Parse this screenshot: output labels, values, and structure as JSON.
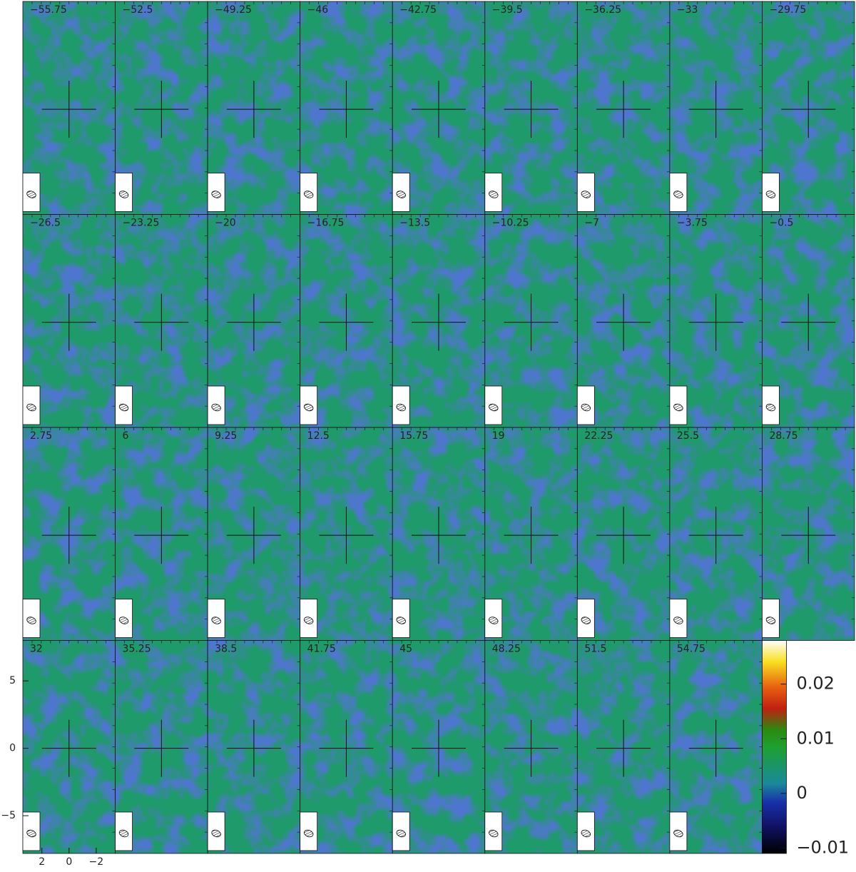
{
  "chart_data": {
    "type": "channel_map",
    "channels": [
      "−55.75",
      "−52.5",
      "−49.25",
      "−46",
      "−42.75",
      "−39.5",
      "−36.25",
      "−33",
      "−29.75",
      "−26.5",
      "−23.25",
      "−20",
      "−16.75",
      "−13.5",
      "−10.25",
      "−7",
      "−3.75",
      "−0.5",
      "2.75",
      "6",
      "9.25",
      "12.5",
      "15.75",
      "19",
      "22.25",
      "25.5",
      "28.75",
      "32",
      "35.25",
      "38.5",
      "41.75",
      "45",
      "48.25",
      "51.5",
      "54.75"
    ],
    "xlim": [
      3.4,
      -3.4
    ],
    "xticks": [
      2,
      0,
      {
        "value": -2,
        "label": "−2"
      }
    ],
    "ylim": [
      -7.8,
      8.0
    ],
    "yticks": [
      5,
      0,
      {
        "value": -5,
        "label": "−5"
      }
    ],
    "colorbar_lim": [
      -0.011,
      0.028
    ],
    "colorbar_ticks": [
      {
        "value": -0.01,
        "label": "−0.01"
      },
      0,
      0.01,
      0.02
    ]
  }
}
